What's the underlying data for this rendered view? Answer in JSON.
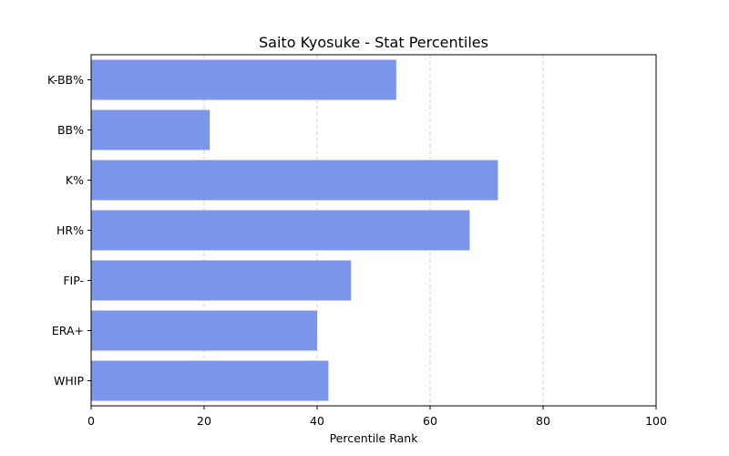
{
  "chart_data": {
    "type": "bar",
    "orientation": "horizontal",
    "title": "Saito Kyosuke - Stat Percentiles",
    "xlabel": "Percentile Rank",
    "ylabel": "",
    "xlim": [
      0,
      100
    ],
    "xticks": [
      0,
      20,
      40,
      60,
      80,
      100
    ],
    "grid": "x-dashed",
    "categories": [
      "K-BB%",
      "BB%",
      "K%",
      "HR%",
      "FIP-",
      "ERA+",
      "WHIP"
    ],
    "values": [
      54,
      21,
      72,
      67,
      46,
      40,
      42
    ],
    "bar_color": "#7b96ea",
    "grid_color": "#c8c8c8"
  }
}
